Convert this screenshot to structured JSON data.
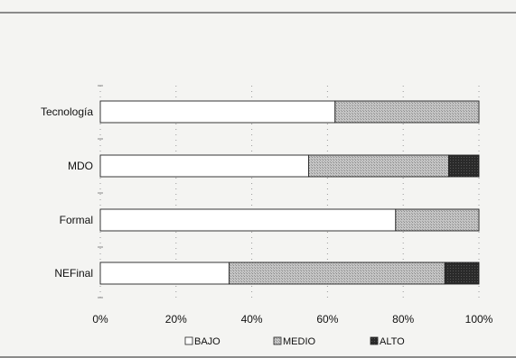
{
  "chart_data": {
    "type": "bar",
    "orientation": "horizontal",
    "stacked": true,
    "percent": true,
    "categories": [
      "Tecnología",
      "MDO",
      "Formal",
      "NEFinal"
    ],
    "series": [
      {
        "name": "BAJO",
        "values": [
          62,
          55,
          78,
          34
        ],
        "color": "#ffffff"
      },
      {
        "name": "MEDIO",
        "values": [
          38,
          37,
          22,
          57
        ],
        "color": "#b8b8b8"
      },
      {
        "name": "ALTO",
        "values": [
          0,
          8,
          0,
          9
        ],
        "color": "#2a2a2a"
      }
    ],
    "xlim": [
      0,
      100
    ],
    "x_ticks": [
      "0%",
      "20%",
      "40%",
      "60%",
      "80%",
      "100%"
    ],
    "grid": true,
    "legend_position": "bottom",
    "title": "",
    "xlabel": "",
    "ylabel": ""
  }
}
